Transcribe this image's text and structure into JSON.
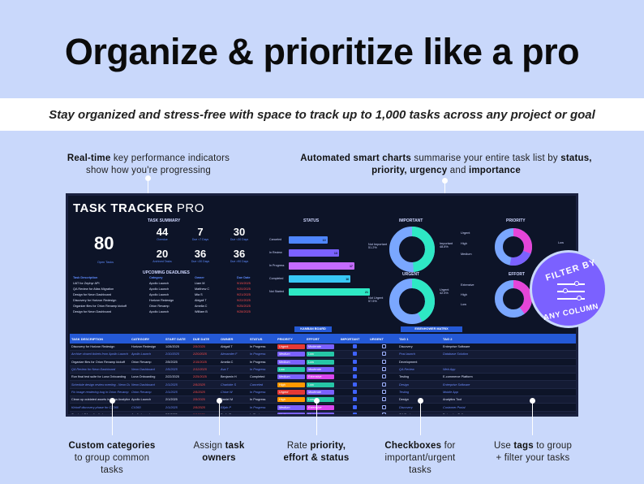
{
  "hero": {
    "title": "Organize & prioritize like a pro",
    "subtitle": "Stay organized and stress-free with space to track up to 1,000 tasks across any project or goal"
  },
  "callouts": {
    "kpi_bold": "Real-time",
    "kpi_text_1": " key performance indicators",
    "kpi_text_2": "show how you're progressing",
    "charts_bold": "Automated smart charts",
    "charts_text_1": " summarise your entire task list by ",
    "charts_bold_2": "status,",
    "charts_bold_3": "priority, urgency",
    "charts_text_2": " and ",
    "charts_bold_4": "importance",
    "categories_bold": "Custom categories",
    "categories_text_1": "to group common",
    "categories_text_2": "tasks",
    "owners_text": "Assign ",
    "owners_bold_1": "task",
    "owners_bold_2": "owners",
    "rate_text": "Rate ",
    "rate_bold_1": "priority,",
    "rate_bold_2": "effort & status",
    "check_bold": "Checkboxes",
    "check_text_1": " for",
    "check_text_2": "important/urgent",
    "check_text_3": "tasks",
    "tags_text_1": "Use ",
    "tags_bold": "tags",
    "tags_text_2": " to  group",
    "tags_text_3": "+ filter your tasks"
  },
  "badge": {
    "line1": "FILTER BY",
    "line2": "ANY COLUMN"
  },
  "dashboard": {
    "title_bold": "TASK TRACKER",
    "title_light": " PRO",
    "task_summary_label": "TASK SUMMARY",
    "open_tasks": "80",
    "open_tasks_label": "Open Tasks",
    "kpis": [
      {
        "value": "44",
        "label": "Overdue"
      },
      {
        "value": "7",
        "label": "Due <7 Days"
      },
      {
        "value": "30",
        "label": "Due <30 Days"
      },
      {
        "value": "20",
        "label": "Archived Tasks"
      },
      {
        "value": "36",
        "label": "Due <30 Days"
      },
      {
        "value": "36",
        "label": "Due >90 Days"
      }
    ],
    "deadlines_label": "UPCOMING DEADLINES",
    "deadline_headers": [
      "Task Description",
      "Category",
      "Owner",
      "Due Date"
    ],
    "deadlines": [
      [
        "UAT for Zephyr API",
        "Apollo Launch",
        "Liam M",
        "9/19/2025"
      ],
      [
        "QA Review for Atlas Migration",
        "Apollo Launch",
        "Matthew C",
        "9/20/2025"
      ],
      [
        "Design for Neon Dashboard",
        "Apollo Launch",
        "Mia S",
        "9/21/2025"
      ],
      [
        "Discovery for Horizon Redesign",
        "Horizon Redesign",
        "Abigail T",
        "9/22/2025"
      ],
      [
        "Organize files for Orion Revamp kickoff",
        "Orion Revamp",
        "Amelia C",
        "9/25/2025"
      ],
      [
        "Design for Neon Dashboard",
        "Apollo Launch",
        "William B",
        "9/28/2025"
      ]
    ],
    "status_label": "STATUS",
    "status_chart": [
      {
        "label": "Canceled",
        "value": 10,
        "color": "#4f86ff"
      },
      {
        "label": "In Review",
        "value": 13,
        "color": "#7b61ff"
      },
      {
        "label": "In Progress",
        "value": 17,
        "color": "#c46bff"
      },
      {
        "label": "Completed",
        "value": 16,
        "color": "#38c8f5"
      },
      {
        "label": "Not Started",
        "value": 21,
        "color": "#2ee8c4"
      }
    ],
    "important_label": "IMPORTANT",
    "important_legend": [
      "Not Important",
      "Important"
    ],
    "important_pcts": [
      "51.2%",
      "48.8%"
    ],
    "urgent_label": "URGENT",
    "urgent_legend": [
      "Not Urgent",
      "Urgent"
    ],
    "urgent_pcts": [
      "57.5%",
      "42.5%"
    ],
    "priority_label": "PRIORITY",
    "priority_legend": [
      "Urgent",
      "High",
      "Medium",
      "Low"
    ],
    "effort_label": "EFFORT",
    "effort_legend": [
      "Extensive",
      "High",
      "Low"
    ],
    "kanban_btn": "KANBAN BOARD",
    "eisenhower_btn": "EISENHOWER MATRIX",
    "table_headers": [
      "TASK DESCRIPTION",
      "CATEGORY",
      "START DATE",
      "DUE DATE",
      "OWNER",
      "STATUS",
      "PRIORITY",
      "EFFORT",
      "IMPORTANT",
      "URGENT",
      "TAG 1",
      "TAG 2"
    ],
    "rows": [
      {
        "desc": "Discovery for Horizon Redesign",
        "cat": "Horizon Redesign",
        "start": "1/28/2025",
        "due": "2/5/2025",
        "owner": "Abigail T",
        "status": "In Progress",
        "priority": "Urgent",
        "effort": "Moderate",
        "imp": true,
        "urg": false,
        "tag1": "Discovery",
        "tag2": "Enterprise Software",
        "archived": false
      },
      {
        "desc": "Archive closed tickets from Apollo Launch",
        "cat": "Apollo Launch",
        "start": "2/10/2025",
        "due": "2/20/2025",
        "owner": "Alexander F",
        "status": "In Progress",
        "priority": "Medium",
        "effort": "Low",
        "imp": true,
        "urg": false,
        "tag1": "Post-launch",
        "tag2": "Database Solution",
        "archived": true
      },
      {
        "desc": "Organize files for Orion Revamp kickoff",
        "cat": "Orion Revamp",
        "start": "2/5/2025",
        "due": "2/15/2025",
        "owner": "Amelia C",
        "status": "In Progress",
        "priority": "Medium",
        "effort": "Low",
        "imp": true,
        "urg": false,
        "tag1": "Development",
        "tag2": "",
        "archived": false
      },
      {
        "desc": "QA Review for Neon Dashboard",
        "cat": "Neon Dashboard",
        "start": "2/5/2025",
        "due": "2/12/2025",
        "owner": "Ava T",
        "status": "In Progress",
        "priority": "Low",
        "effort": "Moderate",
        "imp": true,
        "urg": false,
        "tag1": "QA Review",
        "tag2": "Web App",
        "archived": true
      },
      {
        "desc": "Run final test suite for Luna Onboarding",
        "cat": "Luna Onboarding",
        "start": "2/22/2025",
        "due": "2/25/2025",
        "owner": "Benjamin H",
        "status": "Completed",
        "priority": "Medium",
        "effort": "Extensive",
        "imp": true,
        "urg": false,
        "tag1": "Testing",
        "tag2": "E-commerce Platform",
        "archived": false
      },
      {
        "desc": "Schedule design review meeting - Neon Dashb",
        "cat": "Neon Dashboard",
        "start": "2/1/2025",
        "due": "2/5/2025",
        "owner": "Charlotte S",
        "status": "Canceled",
        "priority": "High",
        "effort": "Low",
        "imp": true,
        "urg": false,
        "tag1": "Design",
        "tag2": "Enterprise Software",
        "archived": true
      },
      {
        "desc": "Fix image rendering bug in Orion Revamp",
        "cat": "Orion Revamp",
        "start": "2/1/2025",
        "due": "2/5/2025",
        "owner": "Chloe W",
        "status": "In Progress",
        "priority": "Urgent",
        "effort": "Moderate",
        "imp": true,
        "urg": false,
        "tag1": "Testing",
        "tag2": "Mobile App",
        "archived": true
      },
      {
        "desc": "Clean up outdated assets in Vega Analytics repo",
        "cat": "Apollo Launch",
        "start": "2/1/2025",
        "due": "2/5/2025",
        "owner": "Daniel M",
        "status": "In Progress",
        "priority": "High",
        "effort": "Low",
        "imp": true,
        "urg": false,
        "tag1": "Design",
        "tag2": "Analytics Tool",
        "archived": false
      },
      {
        "desc": "Kickoff discovery phase for CX360",
        "cat": "CX360",
        "start": "2/1/2025",
        "due": "2/5/2025",
        "owner": "Elijah P",
        "status": "In Progress",
        "priority": "Medium",
        "effort": "Extensive",
        "imp": true,
        "urg": false,
        "tag1": "Discovery",
        "tag2": "Customer Portal",
        "archived": true
      },
      {
        "desc": "Conduct QA on Apollo Launch",
        "cat": "Apollo Launch",
        "start": "2/5/2025",
        "due": "2/8/2025",
        "owner": "Emily R",
        "status": "In Review",
        "priority": "Medium",
        "effort": "Moderate",
        "imp": true,
        "urg": false,
        "tag1": "QA Review",
        "tag2": "Enterprise Software",
        "archived": false
      }
    ],
    "colors": {
      "accent": "#2459d6",
      "urgent": "#e53935",
      "high": "#ff9800",
      "medium": "#7b61ff",
      "low": "#26c6a6",
      "moderate": "#7b61ff",
      "extensive": "#d946ef"
    }
  }
}
